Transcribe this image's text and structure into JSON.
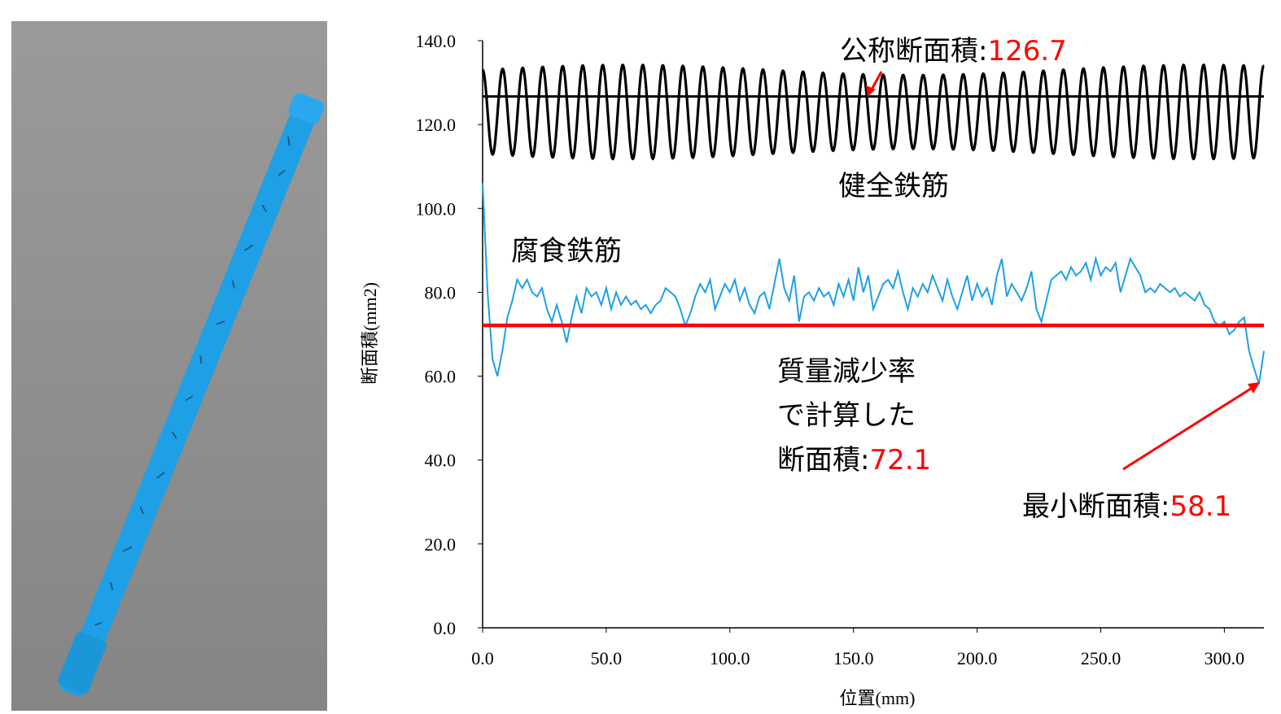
{
  "image_panel": {
    "description_icon": "corroded-rebar-3d-scan",
    "colors": {
      "background": "#8f8f8f",
      "rebar": "#1fa0e6"
    }
  },
  "chart_data": {
    "type": "line",
    "xlabel": "位置(mm)",
    "ylabel": "断面積(mm2)",
    "xlim": [
      0,
      316
    ],
    "ylim": [
      0,
      140
    ],
    "x_ticks": [
      "0.0",
      "50.0",
      "100.0",
      "150.0",
      "200.0",
      "250.0",
      "300.0"
    ],
    "y_ticks": [
      "0.0",
      "20.0",
      "40.0",
      "60.0",
      "80.0",
      "100.0",
      "120.0",
      "140.0"
    ],
    "grid": false,
    "series": [
      {
        "name": "健全鉄筋",
        "color": "#000000",
        "kind": "oscillation",
        "center": 123,
        "amplitude": 10,
        "period_mm": 8.1,
        "x_range": [
          0,
          316
        ]
      },
      {
        "name": "腐食鉄筋",
        "color": "#1fa0e6",
        "x": [
          0,
          2,
          4,
          6,
          8,
          10,
          12,
          14,
          16,
          18,
          20,
          22,
          24,
          26,
          28,
          30,
          32,
          34,
          36,
          38,
          40,
          42,
          44,
          46,
          48,
          50,
          52,
          54,
          56,
          58,
          60,
          62,
          64,
          66,
          68,
          70,
          72,
          74,
          76,
          78,
          80,
          82,
          84,
          86,
          88,
          90,
          92,
          94,
          96,
          98,
          100,
          102,
          104,
          106,
          108,
          110,
          112,
          114,
          116,
          118,
          120,
          122,
          124,
          126,
          128,
          130,
          132,
          134,
          136,
          138,
          140,
          142,
          144,
          146,
          148,
          150,
          152,
          154,
          156,
          158,
          160,
          162,
          164,
          166,
          168,
          170,
          172,
          174,
          176,
          178,
          180,
          182,
          184,
          186,
          188,
          190,
          192,
          194,
          196,
          198,
          200,
          202,
          204,
          206,
          208,
          210,
          212,
          214,
          216,
          218,
          220,
          222,
          224,
          226,
          228,
          230,
          232,
          234,
          236,
          238,
          240,
          242,
          244,
          246,
          248,
          250,
          252,
          254,
          256,
          258,
          260,
          262,
          264,
          266,
          268,
          270,
          272,
          274,
          276,
          278,
          280,
          282,
          284,
          286,
          288,
          290,
          292,
          294,
          296,
          298,
          300,
          302,
          304,
          306,
          308,
          310,
          312,
          314,
          316
        ],
        "values": [
          106,
          80,
          64,
          60,
          66,
          74,
          78,
          83,
          81,
          83,
          80,
          79,
          81,
          76,
          73,
          77,
          73,
          68,
          74,
          79,
          75,
          81,
          79,
          80,
          77,
          81,
          76,
          80,
          77,
          79,
          77,
          78,
          76,
          77,
          75,
          77,
          78,
          81,
          80,
          79,
          76,
          72,
          75,
          79,
          82,
          80,
          83,
          76,
          79,
          82,
          80,
          83,
          78,
          81,
          77,
          75,
          79,
          80,
          76,
          82,
          88,
          81,
          78,
          84,
          73,
          79,
          80,
          78,
          81,
          79,
          80,
          77,
          82,
          79,
          83,
          78,
          86,
          80,
          84,
          76,
          79,
          82,
          83,
          81,
          85,
          80,
          76,
          81,
          79,
          82,
          80,
          84,
          81,
          78,
          83,
          79,
          76,
          80,
          84,
          78,
          82,
          79,
          81,
          77,
          84,
          88,
          79,
          82,
          80,
          78,
          81,
          85,
          76,
          73,
          78,
          83,
          84,
          85,
          83,
          86,
          84,
          85,
          87,
          83,
          88,
          84,
          86,
          85,
          87,
          80,
          84,
          88,
          86,
          84,
          80,
          81,
          80,
          82,
          81,
          80,
          81,
          79,
          80,
          79,
          78,
          80,
          77,
          76,
          73,
          72,
          73,
          70,
          71,
          73,
          74,
          66,
          62,
          58.1,
          66
        ]
      },
      {
        "name": "公称断面積",
        "color": "#000000",
        "kind": "hline",
        "value": 126.7
      },
      {
        "name": "質量減少率で計算した断面積",
        "color": "#ff0000",
        "kind": "hline",
        "value": 72.1
      }
    ],
    "annotations": {
      "nominal": {
        "text": "公称断面積:",
        "value": "126.7"
      },
      "healthy": {
        "text": "健全鉄筋"
      },
      "corroded": {
        "text": "腐食鉄筋"
      },
      "mass_loss_line1": {
        "text": "質量減少率"
      },
      "mass_loss_line2": {
        "text": "で計算した"
      },
      "mass_loss_line3": {
        "text": "断面積:",
        "value": "72.1"
      },
      "minimum": {
        "text": "最小断面積:",
        "value": "58.1"
      }
    }
  }
}
